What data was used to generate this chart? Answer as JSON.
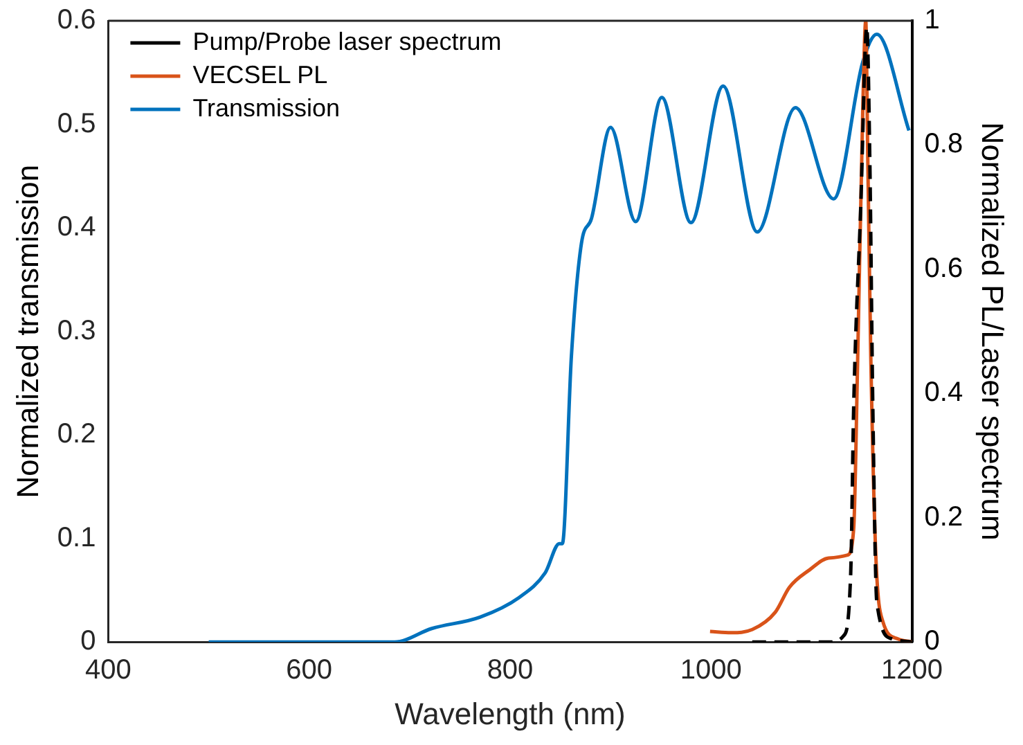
{
  "chart_data": {
    "type": "line",
    "xlabel": "Wavelength (nm)",
    "ylabel": "Normalized transmission",
    "y2label": "Normalized PL/Laser spectrum",
    "xlim": [
      400,
      1200
    ],
    "xticks": [
      400,
      600,
      800,
      1000,
      1200
    ],
    "ylim": [
      0,
      0.6
    ],
    "yticks": [
      0,
      0.1,
      0.2,
      0.3,
      0.4,
      0.5,
      0.6
    ],
    "y2lim": [
      0,
      1
    ],
    "y2ticks": [
      0,
      0.2,
      0.4,
      0.6,
      0.8,
      1
    ],
    "grid": false,
    "legend": "top left",
    "marker": "none",
    "series": [
      {
        "name": "Pump/Probe laser spectrum",
        "color": "#000000",
        "axis": "y2",
        "line_style": "dashed",
        "x": [
          1041,
          1080,
          1120,
          1132,
          1139,
          1142,
          1149,
          1155,
          1158,
          1161,
          1165,
          1180,
          1200
        ],
        "values": [
          0,
          0,
          0,
          0.01,
          0.11,
          0.38,
          0.7,
          0.99,
          0.78,
          0.38,
          0.064,
          0.005,
          0
        ]
      },
      {
        "name": "VECSEL PL",
        "color": "#d95319",
        "axis": "y2",
        "line_style": "solid",
        "x": [
          999,
          1020,
          1041,
          1064,
          1078,
          1098,
          1117,
          1136,
          1142,
          1146,
          1151,
          1154,
          1156,
          1159,
          1164,
          1171,
          1186,
          1200
        ],
        "values": [
          0.017,
          0.015,
          0.02,
          0.048,
          0.088,
          0.116,
          0.135,
          0.14,
          0.183,
          0.46,
          0.855,
          1,
          0.78,
          0.46,
          0.14,
          0.033,
          0.005,
          0
        ]
      },
      {
        "name": "Transmission",
        "color": "#0072bd",
        "line_style": "solid",
        "x": [
          500,
          600,
          685,
          722,
          770,
          809,
          835,
          849,
          852,
          861,
          871,
          881,
          900,
          925,
          951,
          980,
          1012,
          1046,
          1084,
          1122,
          1151,
          1165,
          1197
        ],
        "values": [
          0,
          0,
          0,
          0.013,
          0.024,
          0.043,
          0.067,
          0.095,
          0.095,
          0.276,
          0.385,
          0.409,
          0.497,
          0.406,
          0.526,
          0.405,
          0.537,
          0.396,
          0.516,
          0.428,
          0.56,
          0.587,
          0.494
        ]
      }
    ]
  }
}
